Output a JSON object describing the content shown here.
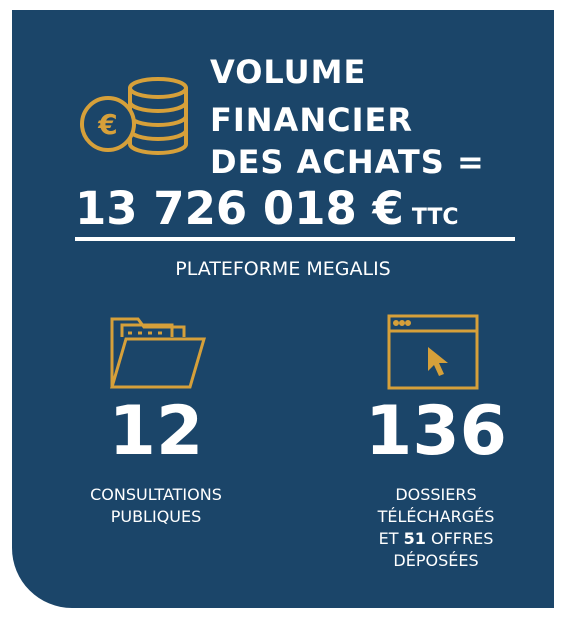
{
  "title": {
    "lines": [
      "VOLUME",
      "FINANCIER",
      "DES ACHATS ="
    ],
    "amount": "13 726 018 €",
    "unit": "TTC"
  },
  "platform": "PLATEFORME MEGALIS",
  "stats": [
    {
      "value": 12,
      "lines": [
        "CONSULTATIONS",
        "PUBLIQUES"
      ]
    },
    {
      "value": 136,
      "lines": [
        "DOSSIERS",
        "TÉLÉCHARGÉS"
      ],
      "extra": {
        "prefix": "ET",
        "value": 51,
        "suffix": "OFFRES"
      },
      "last": "DÉPOSÉES"
    }
  ]
}
